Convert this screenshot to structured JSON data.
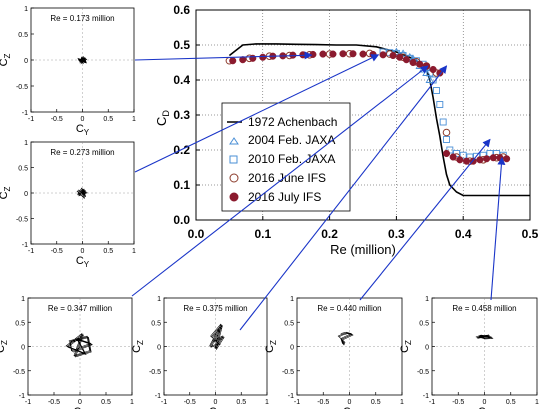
{
  "chart_data": [
    {
      "type": "scatter",
      "id": "main",
      "xlabel": "Re (million)",
      "ylabel": "C",
      "ylabel_sub": "D",
      "xlim": [
        0.0,
        0.5
      ],
      "ylim": [
        0.0,
        0.6
      ],
      "xticks": [
        "0.0",
        "0.1",
        "0.2",
        "0.3",
        "0.4",
        "0.5"
      ],
      "yticks": [
        "0.0",
        "0.1",
        "0.2",
        "0.3",
        "0.4",
        "0.5",
        "0.6"
      ],
      "legend_position": "center-left",
      "series": [
        {
          "name": "1972 Achenbach",
          "style": "line",
          "color": "#000000",
          "x": [
            0.05,
            0.07,
            0.09,
            0.12,
            0.15,
            0.18,
            0.21,
            0.24,
            0.27,
            0.3,
            0.32,
            0.335,
            0.345,
            0.35,
            0.355,
            0.36,
            0.365,
            0.37,
            0.375,
            0.38,
            0.39,
            0.4,
            0.45,
            0.5
          ],
          "y": [
            0.47,
            0.5,
            0.503,
            0.503,
            0.502,
            0.501,
            0.5,
            0.5,
            0.495,
            0.48,
            0.465,
            0.45,
            0.43,
            0.4,
            0.35,
            0.29,
            0.24,
            0.18,
            0.13,
            0.1,
            0.08,
            0.07,
            0.07,
            0.07
          ]
        },
        {
          "name": "2004 Feb. JAXA",
          "style": "open-triangle",
          "color": "#4a8fd6",
          "x": [
            0.3,
            0.31,
            0.32,
            0.325,
            0.33,
            0.335,
            0.34,
            0.345,
            0.35
          ],
          "y": [
            0.48,
            0.475,
            0.465,
            0.46,
            0.45,
            0.44,
            0.43,
            0.42,
            0.4
          ]
        },
        {
          "name": "2010 Feb. JAXA",
          "style": "open-square",
          "color": "#4a8fd6",
          "x": [
            0.28,
            0.29,
            0.3,
            0.31,
            0.32,
            0.33,
            0.34,
            0.345,
            0.35,
            0.355,
            0.36,
            0.365,
            0.37,
            0.375,
            0.38,
            0.39,
            0.4,
            0.41,
            0.42,
            0.43,
            0.44,
            0.45,
            0.46
          ],
          "y": [
            0.48,
            0.478,
            0.476,
            0.47,
            0.462,
            0.455,
            0.445,
            0.435,
            0.42,
            0.4,
            0.37,
            0.33,
            0.28,
            0.23,
            0.2,
            0.19,
            0.185,
            0.18,
            0.182,
            0.185,
            0.19,
            0.19,
            0.185
          ]
        },
        {
          "name": "2016 June IFS",
          "style": "open-circle",
          "color": "#8b3a2a",
          "x": [
            0.05,
            0.08,
            0.11,
            0.14,
            0.17,
            0.2,
            0.23,
            0.26,
            0.29,
            0.31,
            0.33,
            0.345,
            0.36,
            0.375,
            0.39,
            0.41,
            0.43,
            0.45,
            0.46
          ],
          "y": [
            0.455,
            0.462,
            0.468,
            0.47,
            0.472,
            0.474,
            0.475,
            0.476,
            0.474,
            0.465,
            0.452,
            0.44,
            0.42,
            0.25,
            0.18,
            0.168,
            0.172,
            0.178,
            0.18
          ]
        },
        {
          "name": "2016 July IFS",
          "style": "filled-circle",
          "color": "#8b1a2e",
          "x": [
            0.055,
            0.07,
            0.085,
            0.1,
            0.115,
            0.13,
            0.145,
            0.16,
            0.175,
            0.19,
            0.205,
            0.22,
            0.235,
            0.25,
            0.265,
            0.28,
            0.295,
            0.305,
            0.315,
            0.325,
            0.335,
            0.345,
            0.355,
            0.365,
            0.375,
            0.385,
            0.395,
            0.405,
            0.415,
            0.425,
            0.435,
            0.445,
            0.455,
            0.465
          ],
          "y": [
            0.455,
            0.458,
            0.462,
            0.465,
            0.468,
            0.469,
            0.471,
            0.472,
            0.473,
            0.474,
            0.474,
            0.475,
            0.475,
            0.474,
            0.473,
            0.472,
            0.47,
            0.465,
            0.458,
            0.45,
            0.445,
            0.44,
            0.43,
            0.42,
            0.19,
            0.18,
            0.172,
            0.168,
            0.168,
            0.172,
            0.175,
            0.178,
            0.178,
            0.175
          ]
        }
      ]
    },
    {
      "type": "scatter",
      "id": "re0173",
      "label": "Re = 0.173 million",
      "xlabel": "C",
      "xlabel_sub": "Y",
      "ylabel": "C",
      "ylabel_sub": "Z",
      "xlim": [
        -1,
        1
      ],
      "ylim": [
        -1,
        1
      ],
      "xticks": [
        "-1",
        "-0.5",
        "0",
        "0.5",
        "1"
      ],
      "yticks": [
        "-1",
        "-0.5",
        "0",
        "0.5",
        "1"
      ],
      "points": [
        [
          -0.08,
          0.02
        ],
        [
          0.05,
          -0.03
        ],
        [
          0.0,
          0.04
        ],
        [
          -0.04,
          -0.05
        ],
        [
          0.07,
          0.03
        ],
        [
          -0.02,
          0.0
        ],
        [
          0.03,
          0.05
        ],
        [
          0.06,
          -0.04
        ],
        [
          -0.07,
          -0.01
        ],
        [
          0.01,
          -0.06
        ]
      ]
    },
    {
      "type": "scatter",
      "id": "re0273",
      "label": "Re = 0.273 million",
      "xlabel": "C",
      "xlabel_sub": "Y",
      "ylabel": "C",
      "ylabel_sub": "Z",
      "xlim": [
        -1,
        1
      ],
      "ylim": [
        -1,
        1
      ],
      "xticks": [
        "-1",
        "-0.5",
        "0",
        "0.5",
        "1"
      ],
      "yticks": [
        "-1",
        "-0.5",
        "0",
        "0.5",
        "1"
      ],
      "points": [
        [
          -0.06,
          0.05
        ],
        [
          0.05,
          -0.06
        ],
        [
          0.0,
          0.08
        ],
        [
          -0.08,
          -0.04
        ],
        [
          0.08,
          0.02
        ],
        [
          -0.03,
          0.0
        ],
        [
          0.04,
          0.06
        ],
        [
          0.02,
          -0.09
        ],
        [
          -0.09,
          0.02
        ]
      ]
    },
    {
      "type": "scatter",
      "id": "re0347",
      "label": "Re = 0.347 million",
      "xlabel": "C",
      "xlabel_sub": "Y",
      "ylabel": "C",
      "ylabel_sub": "Z",
      "xlim": [
        -1,
        1
      ],
      "ylim": [
        -1,
        1
      ],
      "xticks": [
        "-1",
        "-0.5",
        "0",
        "0.5",
        "1"
      ],
      "yticks": [
        "-1",
        "-0.5",
        "0",
        "0.5",
        "1"
      ],
      "points": [
        [
          -0.2,
          0.1
        ],
        [
          0.15,
          0.2
        ],
        [
          0.2,
          -0.1
        ],
        [
          -0.1,
          -0.2
        ],
        [
          0.05,
          0.25
        ],
        [
          -0.25,
          0.0
        ],
        [
          0.1,
          -0.15
        ],
        [
          -0.05,
          0.15
        ],
        [
          0.22,
          0.05
        ],
        [
          -0.15,
          -0.1
        ]
      ]
    },
    {
      "type": "scatter",
      "id": "re0375",
      "label": "Re = 0.375 million",
      "xlabel": "C",
      "xlabel_sub": "Y",
      "ylabel": "C",
      "ylabel_sub": "Z",
      "xlim": [
        -1,
        1
      ],
      "ylim": [
        -1,
        1
      ],
      "xticks": [
        "-1",
        "-0.5",
        "0",
        "0.5",
        "1"
      ],
      "yticks": [
        "-1",
        "-0.5",
        "0",
        "0.5",
        "1"
      ],
      "points": [
        [
          -0.1,
          0.0
        ],
        [
          0.1,
          0.4
        ],
        [
          0.05,
          0.3
        ],
        [
          -0.05,
          0.1
        ],
        [
          0.15,
          0.2
        ],
        [
          0.0,
          -0.05
        ],
        [
          0.12,
          0.45
        ],
        [
          -0.08,
          0.2
        ],
        [
          0.08,
          0.05
        ]
      ]
    },
    {
      "type": "scatter",
      "id": "re0440",
      "label": "Re = 0.440 million",
      "xlabel": "C",
      "xlabel_sub": "Y",
      "ylabel": "C",
      "ylabel_sub": "Z",
      "xlim": [
        -1,
        1
      ],
      "ylim": [
        -1,
        1
      ],
      "xticks": [
        "-1",
        "-0.5",
        "0",
        "0.5",
        "1"
      ],
      "yticks": [
        "-1",
        "-0.5",
        "0",
        "0.5",
        "1"
      ],
      "points": [
        [
          -0.15,
          0.25
        ],
        [
          -0.05,
          0.28
        ],
        [
          0.05,
          0.25
        ],
        [
          -0.15,
          0.15
        ],
        [
          -0.12,
          0.05
        ],
        [
          -0.1,
          0.1
        ],
        [
          -0.2,
          0.2
        ]
      ]
    },
    {
      "type": "scatter",
      "id": "re0458",
      "label": "Re = 0.458 million",
      "xlabel": "C",
      "xlabel_sub": "Y",
      "ylabel": "C",
      "ylabel_sub": "Z",
      "xlim": [
        -1,
        1
      ],
      "ylim": [
        -1,
        1
      ],
      "xticks": [
        "-1",
        "-0.5",
        "0",
        "0.5",
        "1"
      ],
      "yticks": [
        "-1",
        "-0.5",
        "0",
        "0.5",
        "1"
      ],
      "points": [
        [
          -0.15,
          0.18
        ],
        [
          -0.05,
          0.22
        ],
        [
          0.05,
          0.2
        ],
        [
          0.15,
          0.18
        ],
        [
          0.0,
          0.17
        ],
        [
          -0.1,
          0.2
        ],
        [
          0.1,
          0.22
        ]
      ]
    }
  ]
}
